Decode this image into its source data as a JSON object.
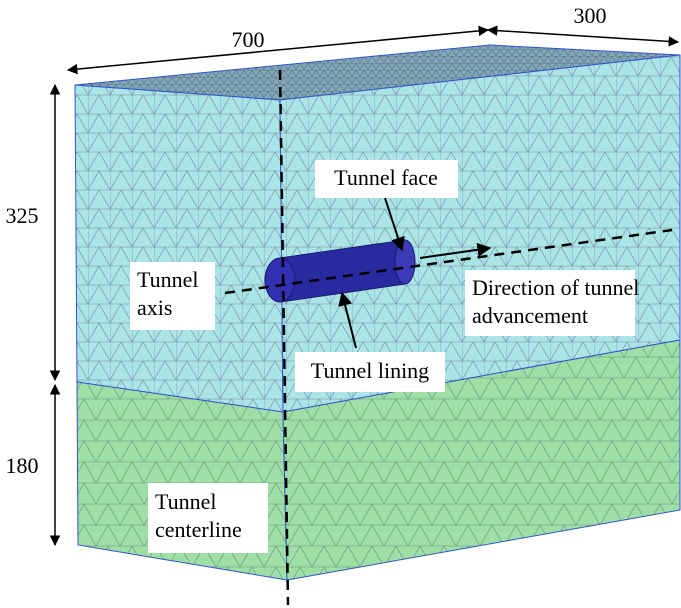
{
  "dimensions": {
    "length": 700,
    "width": 300,
    "upper_height": 325,
    "lower_height": 180
  },
  "labels": {
    "tunnel_face": "Tunnel face",
    "tunnel_axis": [
      "Tunnel",
      "axis"
    ],
    "direction": [
      "Direction of tunnel",
      "advancement"
    ],
    "tunnel_lining": "Tunnel lining",
    "tunnel_centerline": [
      "Tunnel",
      "centerline"
    ]
  }
}
